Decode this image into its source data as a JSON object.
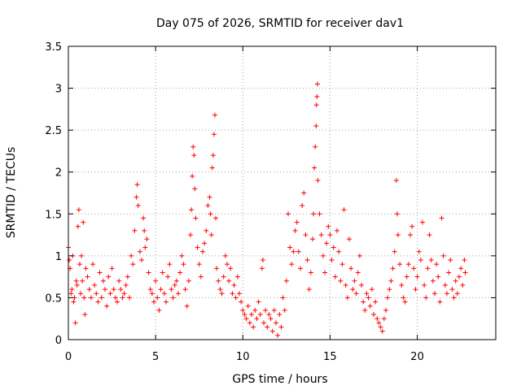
{
  "chart_data": {
    "type": "scatter",
    "title": "Day 075 of 2026, SRMTID for receiver dav1",
    "xlabel": "GPS time / hours",
    "ylabel": "SRMTID / TECUs",
    "xlim": [
      0,
      24.5
    ],
    "ylim": [
      0,
      3.5
    ],
    "xticks": [
      0,
      5,
      10,
      15,
      20
    ],
    "xtick_labels": [
      "0",
      "5",
      "10",
      "15",
      "20"
    ],
    "yticks": [
      0,
      0.5,
      1,
      1.5,
      2,
      2.5,
      3,
      3.5
    ],
    "ytick_labels": [
      "0",
      "0.5",
      "1",
      "1.5",
      "2",
      "2.5",
      "3",
      "3.5"
    ],
    "grid": true,
    "marker": "+",
    "marker_color": "#ff0000",
    "series": [
      {
        "name": "SRMTID",
        "points": [
          [
            0.0,
            1.1
          ],
          [
            0.05,
            0.95
          ],
          [
            0.1,
            0.85
          ],
          [
            0.15,
            0.55
          ],
          [
            0.2,
            0.6
          ],
          [
            0.25,
            1.0
          ],
          [
            0.3,
            0.45
          ],
          [
            0.35,
            0.5
          ],
          [
            0.4,
            0.2
          ],
          [
            0.45,
            0.7
          ],
          [
            0.5,
            0.65
          ],
          [
            0.55,
            1.35
          ],
          [
            0.6,
            1.55
          ],
          [
            0.65,
            0.9
          ],
          [
            0.7,
            0.55
          ],
          [
            0.75,
            1.0
          ],
          [
            0.8,
            0.7
          ],
          [
            0.85,
            1.4
          ],
          [
            0.9,
            0.5
          ],
          [
            0.95,
            0.3
          ],
          [
            1.0,
            0.85
          ],
          [
            1.1,
            0.75
          ],
          [
            1.2,
            0.6
          ],
          [
            1.3,
            0.5
          ],
          [
            1.4,
            0.9
          ],
          [
            1.5,
            0.65
          ],
          [
            1.6,
            0.55
          ],
          [
            1.7,
            0.45
          ],
          [
            1.8,
            0.8
          ],
          [
            1.9,
            0.5
          ],
          [
            2.0,
            0.7
          ],
          [
            2.1,
            0.6
          ],
          [
            2.2,
            0.4
          ],
          [
            2.3,
            0.75
          ],
          [
            2.4,
            0.55
          ],
          [
            2.5,
            0.85
          ],
          [
            2.6,
            0.6
          ],
          [
            2.7,
            0.5
          ],
          [
            2.8,
            0.45
          ],
          [
            2.9,
            0.7
          ],
          [
            3.0,
            0.6
          ],
          [
            3.1,
            0.5
          ],
          [
            3.2,
            0.55
          ],
          [
            3.3,
            0.65
          ],
          [
            3.4,
            0.75
          ],
          [
            3.5,
            0.5
          ],
          [
            3.6,
            1.0
          ],
          [
            3.7,
            0.9
          ],
          [
            3.8,
            1.3
          ],
          [
            3.9,
            1.7
          ],
          [
            3.95,
            1.85
          ],
          [
            4.0,
            1.6
          ],
          [
            4.1,
            1.05
          ],
          [
            4.2,
            0.95
          ],
          [
            4.3,
            1.45
          ],
          [
            4.35,
            1.3
          ],
          [
            4.4,
            1.1
          ],
          [
            4.5,
            1.2
          ],
          [
            4.6,
            0.8
          ],
          [
            4.7,
            0.6
          ],
          [
            4.8,
            0.55
          ],
          [
            4.9,
            0.45
          ],
          [
            5.0,
            0.7
          ],
          [
            5.1,
            0.5
          ],
          [
            5.2,
            0.35
          ],
          [
            5.3,
            0.6
          ],
          [
            5.4,
            0.8
          ],
          [
            5.5,
            0.55
          ],
          [
            5.6,
            0.45
          ],
          [
            5.7,
            0.75
          ],
          [
            5.8,
            0.9
          ],
          [
            5.9,
            0.6
          ],
          [
            6.0,
            0.5
          ],
          [
            6.1,
            0.65
          ],
          [
            6.2,
            0.7
          ],
          [
            6.3,
            0.55
          ],
          [
            6.4,
            0.8
          ],
          [
            6.5,
            1.0
          ],
          [
            6.6,
            0.9
          ],
          [
            6.7,
            0.6
          ],
          [
            6.8,
            0.4
          ],
          [
            6.9,
            0.7
          ],
          [
            7.0,
            1.25
          ],
          [
            7.05,
            1.55
          ],
          [
            7.1,
            1.95
          ],
          [
            7.15,
            2.3
          ],
          [
            7.2,
            2.2
          ],
          [
            7.25,
            1.8
          ],
          [
            7.3,
            1.45
          ],
          [
            7.4,
            1.1
          ],
          [
            7.5,
            0.9
          ],
          [
            7.6,
            0.75
          ],
          [
            7.7,
            1.05
          ],
          [
            7.8,
            1.15
          ],
          [
            7.9,
            1.3
          ],
          [
            8.0,
            1.6
          ],
          [
            8.1,
            1.7
          ],
          [
            8.15,
            1.5
          ],
          [
            8.2,
            1.25
          ],
          [
            8.25,
            2.05
          ],
          [
            8.3,
            2.2
          ],
          [
            8.35,
            2.45
          ],
          [
            8.4,
            2.68
          ],
          [
            8.45,
            1.45
          ],
          [
            8.5,
            0.85
          ],
          [
            8.6,
            0.7
          ],
          [
            8.7,
            0.6
          ],
          [
            8.8,
            0.55
          ],
          [
            8.9,
            0.75
          ],
          [
            9.0,
            1.0
          ],
          [
            9.1,
            0.9
          ],
          [
            9.2,
            0.7
          ],
          [
            9.3,
            0.85
          ],
          [
            9.4,
            0.55
          ],
          [
            9.5,
            0.65
          ],
          [
            9.6,
            0.5
          ],
          [
            9.7,
            0.75
          ],
          [
            9.8,
            0.55
          ],
          [
            9.9,
            0.45
          ],
          [
            10.0,
            0.35
          ],
          [
            10.1,
            0.3
          ],
          [
            10.2,
            0.25
          ],
          [
            10.3,
            0.4
          ],
          [
            10.4,
            0.2
          ],
          [
            10.5,
            0.3
          ],
          [
            10.6,
            0.15
          ],
          [
            10.7,
            0.35
          ],
          [
            10.8,
            0.25
          ],
          [
            10.9,
            0.45
          ],
          [
            11.0,
            0.3
          ],
          [
            11.1,
            0.85
          ],
          [
            11.15,
            0.95
          ],
          [
            11.2,
            0.2
          ],
          [
            11.3,
            0.35
          ],
          [
            11.4,
            0.15
          ],
          [
            11.5,
            0.3
          ],
          [
            11.6,
            0.25
          ],
          [
            11.7,
            0.1
          ],
          [
            11.8,
            0.35
          ],
          [
            11.9,
            0.2
          ],
          [
            12.0,
            0.05
          ],
          [
            12.1,
            0.3
          ],
          [
            12.2,
            0.15
          ],
          [
            12.3,
            0.5
          ],
          [
            12.4,
            0.35
          ],
          [
            12.5,
            0.7
          ],
          [
            12.6,
            1.5
          ],
          [
            12.7,
            1.1
          ],
          [
            12.8,
            0.9
          ],
          [
            12.9,
            1.05
          ],
          [
            13.0,
            1.3
          ],
          [
            13.1,
            1.4
          ],
          [
            13.2,
            1.05
          ],
          [
            13.3,
            0.85
          ],
          [
            13.4,
            1.6
          ],
          [
            13.5,
            1.75
          ],
          [
            13.6,
            1.25
          ],
          [
            13.7,
            0.95
          ],
          [
            13.8,
            0.6
          ],
          [
            13.9,
            0.8
          ],
          [
            14.0,
            1.2
          ],
          [
            14.05,
            1.5
          ],
          [
            14.1,
            2.05
          ],
          [
            14.15,
            2.3
          ],
          [
            14.2,
            2.55
          ],
          [
            14.22,
            2.8
          ],
          [
            14.25,
            2.9
          ],
          [
            14.28,
            3.05
          ],
          [
            14.3,
            1.9
          ],
          [
            14.4,
            1.5
          ],
          [
            14.5,
            1.25
          ],
          [
            14.6,
            1.0
          ],
          [
            14.7,
            0.8
          ],
          [
            14.8,
            1.15
          ],
          [
            14.9,
            1.35
          ],
          [
            15.0,
            1.25
          ],
          [
            15.1,
            0.95
          ],
          [
            15.2,
            1.1
          ],
          [
            15.3,
            0.75
          ],
          [
            15.4,
            1.3
          ],
          [
            15.5,
            1.05
          ],
          [
            15.6,
            0.7
          ],
          [
            15.7,
            0.9
          ],
          [
            15.8,
            1.55
          ],
          [
            15.9,
            0.65
          ],
          [
            16.0,
            0.5
          ],
          [
            16.1,
            1.2
          ],
          [
            16.2,
            0.85
          ],
          [
            16.3,
            0.6
          ],
          [
            16.4,
            0.7
          ],
          [
            16.5,
            0.55
          ],
          [
            16.6,
            0.8
          ],
          [
            16.7,
            1.0
          ],
          [
            16.8,
            0.65
          ],
          [
            16.9,
            0.45
          ],
          [
            17.0,
            0.35
          ],
          [
            17.1,
            0.55
          ],
          [
            17.2,
            0.5
          ],
          [
            17.3,
            0.4
          ],
          [
            17.4,
            0.6
          ],
          [
            17.5,
            0.3
          ],
          [
            17.6,
            0.45
          ],
          [
            17.7,
            0.25
          ],
          [
            17.8,
            0.2
          ],
          [
            17.9,
            0.15
          ],
          [
            18.0,
            0.1
          ],
          [
            18.1,
            0.25
          ],
          [
            18.2,
            0.35
          ],
          [
            18.3,
            0.5
          ],
          [
            18.4,
            0.6
          ],
          [
            18.5,
            0.7
          ],
          [
            18.6,
            0.85
          ],
          [
            18.7,
            1.05
          ],
          [
            18.8,
            1.9
          ],
          [
            18.85,
            1.5
          ],
          [
            18.9,
            1.25
          ],
          [
            19.0,
            0.9
          ],
          [
            19.1,
            0.65
          ],
          [
            19.2,
            0.5
          ],
          [
            19.3,
            0.45
          ],
          [
            19.4,
            0.75
          ],
          [
            19.5,
            0.9
          ],
          [
            19.6,
            1.25
          ],
          [
            19.7,
            1.35
          ],
          [
            19.8,
            0.85
          ],
          [
            19.9,
            0.6
          ],
          [
            20.0,
            0.75
          ],
          [
            20.1,
            1.05
          ],
          [
            20.2,
            0.95
          ],
          [
            20.3,
            1.4
          ],
          [
            20.4,
            0.65
          ],
          [
            20.5,
            0.5
          ],
          [
            20.6,
            0.85
          ],
          [
            20.7,
            1.25
          ],
          [
            20.8,
            0.95
          ],
          [
            20.9,
            0.7
          ],
          [
            21.0,
            0.55
          ],
          [
            21.1,
            0.9
          ],
          [
            21.2,
            0.75
          ],
          [
            21.3,
            0.45
          ],
          [
            21.4,
            1.45
          ],
          [
            21.5,
            1.0
          ],
          [
            21.6,
            0.65
          ],
          [
            21.7,
            0.55
          ],
          [
            21.8,
            0.8
          ],
          [
            21.9,
            0.95
          ],
          [
            22.0,
            0.6
          ],
          [
            22.1,
            0.5
          ],
          [
            22.2,
            0.7
          ],
          [
            22.3,
            0.55
          ],
          [
            22.4,
            0.75
          ],
          [
            22.5,
            0.85
          ],
          [
            22.6,
            0.65
          ],
          [
            22.7,
            0.95
          ],
          [
            22.75,
            0.8
          ]
        ]
      }
    ]
  }
}
